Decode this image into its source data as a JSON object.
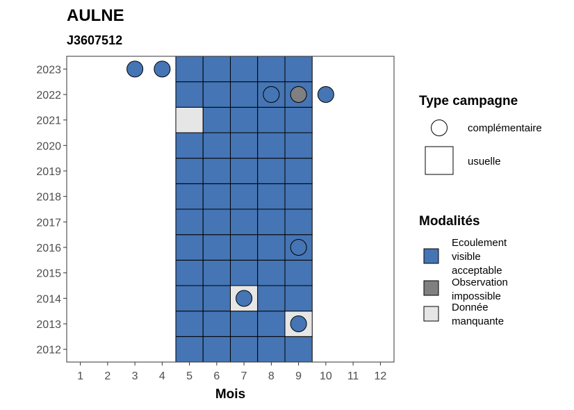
{
  "chart_data": {
    "type": "heatmap",
    "title": "AULNE",
    "subtitle": "J3607512",
    "xlabel": "Mois",
    "ylabel": "",
    "x_ticks": [
      1,
      2,
      3,
      4,
      5,
      6,
      7,
      8,
      9,
      10,
      11,
      12
    ],
    "y_ticks": [
      2012,
      2013,
      2014,
      2015,
      2016,
      2017,
      2018,
      2019,
      2020,
      2021,
      2022,
      2023
    ],
    "xlim": [
      0.5,
      12.5
    ],
    "ylim": [
      2011.5,
      2023.5
    ],
    "grid": false,
    "colors": {
      "ecoulement": "#4575b4",
      "observation_impossible": "#808080",
      "donnee_manquante": "#e6e6e6"
    },
    "legend": {
      "placement": "right",
      "type_campagne": {
        "title": "Type campagne",
        "items": [
          {
            "key": "complementaire",
            "label": "complémentaire",
            "shape": "circle"
          },
          {
            "key": "usuelle",
            "label": "usuelle",
            "shape": "square"
          }
        ]
      },
      "modalites": {
        "title": "Modalités",
        "items": [
          {
            "key": "ecoulement",
            "label_lines": [
              "Ecoulement",
              "visible",
              "acceptable"
            ]
          },
          {
            "key": "observation_impossible",
            "label_lines": [
              "Observation",
              "impossible"
            ]
          },
          {
            "key": "donnee_manquante",
            "label_lines": [
              "Donnée",
              "manquante"
            ]
          }
        ]
      }
    },
    "usuelle": {
      "months": [
        5,
        6,
        7,
        8,
        9
      ],
      "years": [
        2012,
        2013,
        2014,
        2015,
        2016,
        2017,
        2018,
        2019,
        2020,
        2021,
        2022,
        2023
      ],
      "default": "ecoulement",
      "exceptions": [
        {
          "year": 2021,
          "month": 5,
          "value": "donnee_manquante"
        },
        {
          "year": 2014,
          "month": 7,
          "value": "donnee_manquante"
        },
        {
          "year": 2013,
          "month": 9,
          "value": "donnee_manquante"
        }
      ]
    },
    "complementaire": [
      {
        "year": 2023,
        "month": 3,
        "value": "ecoulement"
      },
      {
        "year": 2023,
        "month": 4,
        "value": "ecoulement"
      },
      {
        "year": 2022,
        "month": 8,
        "value": "ecoulement"
      },
      {
        "year": 2022,
        "month": 9,
        "value": "observation_impossible"
      },
      {
        "year": 2022,
        "month": 10,
        "value": "ecoulement"
      },
      {
        "year": 2016,
        "month": 9,
        "value": "ecoulement"
      },
      {
        "year": 2014,
        "month": 7,
        "value": "ecoulement"
      },
      {
        "year": 2013,
        "month": 9,
        "value": "ecoulement"
      }
    ]
  }
}
